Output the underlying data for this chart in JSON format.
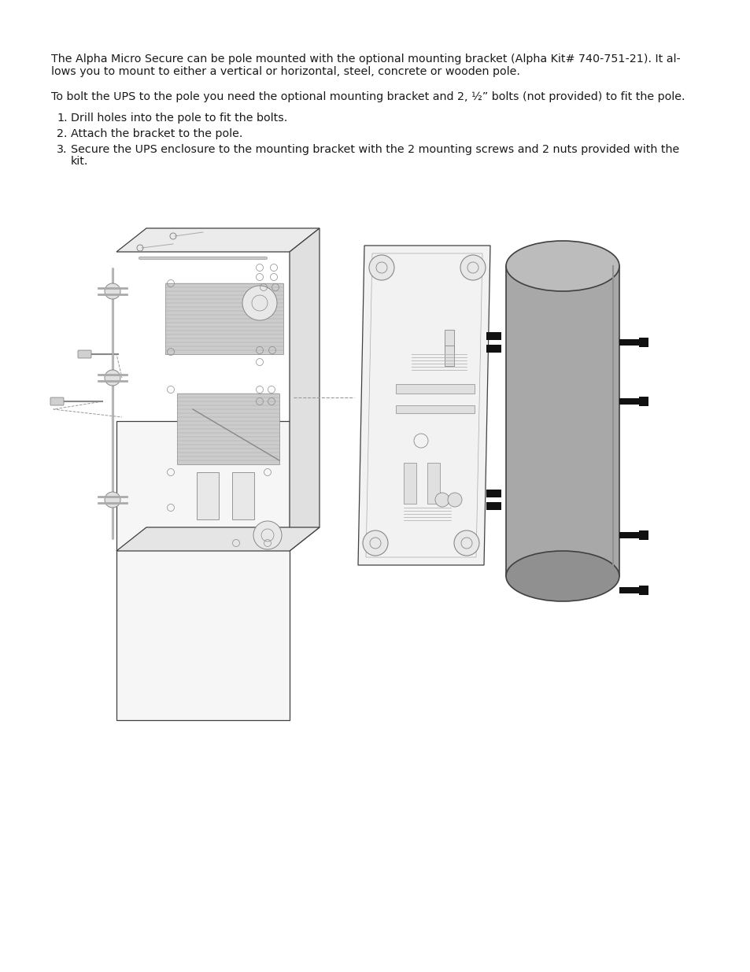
{
  "background_color": "#ffffff",
  "text_color": "#1a1a1a",
  "dk": "#404040",
  "para1_line1": "The Alpha Micro Secure can be pole mounted with the optional mounting bracket (Alpha Kit# 740-751-21). It al-",
  "para1_line2": "lows you to mount to either a vertical or horizontal, steel, concrete or wooden pole.",
  "para2": "To bolt the UPS to the pole you need the optional mounting bracket and 2, ½” bolts (not provided) to fit the pole.",
  "item1": "Drill holes into the pole to fit the bolts.",
  "item2": "Attach the bracket to the pole.",
  "item3_line1": "Secure the UPS enclosure to the mounting bracket with the 2 mounting screws and 2 nuts provided with the",
  "item3_line2": "kit.",
  "figsize": [
    9.54,
    12.35
  ],
  "dpi": 100,
  "pole_fill": "#a8a8a8",
  "pole_edge": "#2a2a2a",
  "bracket_fill": "#f2f2f2",
  "bracket_edge": "#404040",
  "ups_fill": "#f5f5f5",
  "ups_edge": "#404040",
  "bolt_fill": "#111111",
  "vent_fill": "#cccccc",
  "dashed_color": "#999999"
}
